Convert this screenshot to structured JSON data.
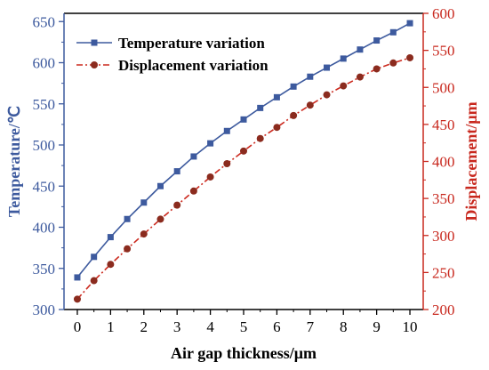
{
  "chart_data": {
    "type": "line",
    "xlabel": "Air gap thickness/μm",
    "ylabel_left": "Temperature/℃",
    "ylabel_right": "Displacement/μm",
    "xlim": [
      -0.4,
      10.4
    ],
    "ylim_left": [
      300,
      660
    ],
    "ylim_right": [
      200,
      600
    ],
    "x_ticks": [
      0,
      1,
      2,
      3,
      4,
      5,
      6,
      7,
      8,
      9,
      10
    ],
    "y_left_ticks": [
      300,
      350,
      400,
      450,
      500,
      550,
      600,
      650
    ],
    "y_right_ticks": [
      200,
      250,
      300,
      350,
      400,
      450,
      500,
      550,
      600
    ],
    "legend_position": "top-left",
    "grid": false,
    "series": [
      {
        "name": "Temperature variation",
        "axis": "left",
        "color": "#3d5a9e",
        "marker": "square",
        "line": "solid",
        "x": [
          0,
          0.5,
          1,
          1.5,
          2,
          2.5,
          3,
          3.5,
          4,
          4.5,
          5,
          5.5,
          6,
          6.5,
          7,
          7.5,
          8,
          8.5,
          9,
          9.5,
          10
        ],
        "values": [
          339,
          364,
          388,
          410,
          430,
          450,
          468,
          486,
          502,
          517,
          531,
          545,
          558,
          571,
          583,
          594,
          605,
          616,
          627,
          637,
          648
        ]
      },
      {
        "name": "Displacement variation",
        "axis": "right",
        "color": "#8b2b1e",
        "line_color": "#cc2a1f",
        "marker": "circle",
        "line": "dash-dot",
        "x": [
          0,
          0.5,
          1,
          1.5,
          2,
          2.5,
          3,
          3.5,
          4,
          4.5,
          5,
          5.5,
          6,
          6.5,
          7,
          7.5,
          8,
          8.5,
          9,
          9.5,
          10
        ],
        "values": [
          214,
          239,
          261,
          282,
          302,
          322,
          341,
          360,
          379,
          397,
          414,
          431,
          446,
          462,
          476,
          490,
          502,
          514,
          525,
          533,
          540
        ]
      }
    ]
  },
  "colors": {
    "left_axis": "#3d5a9e",
    "right_axis": "#c8281e",
    "frame": "#000000"
  }
}
